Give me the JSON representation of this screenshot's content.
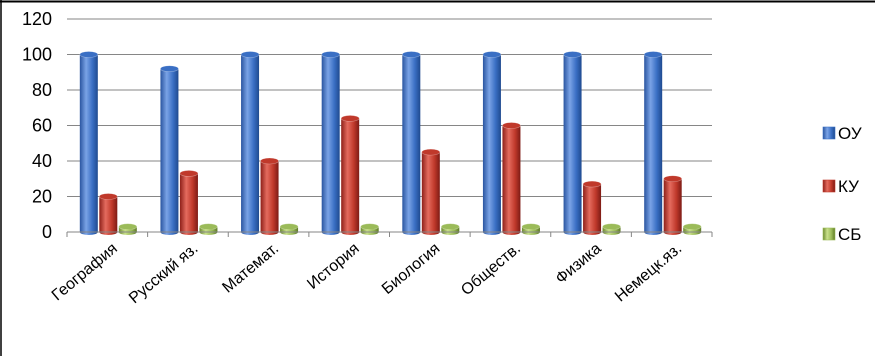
{
  "chart_data": {
    "type": "bar",
    "categories": [
      "География",
      "Русский яз.",
      "Математ.",
      "История",
      "Биология",
      "Обществ.",
      "Физика",
      "Немецк.яз."
    ],
    "series": [
      {
        "name": "ОУ",
        "color": "#3a6fc4",
        "values": [
          100,
          92,
          100,
          100,
          100,
          100,
          100,
          100
        ]
      },
      {
        "name": "КУ",
        "color": "#c0392b",
        "values": [
          20,
          33,
          40,
          64,
          45,
          60,
          27,
          30
        ]
      },
      {
        "name": "СБ",
        "color": "#9bbb59",
        "values": [
          3,
          3,
          3,
          3,
          3,
          3,
          3,
          3
        ]
      }
    ],
    "ylim": [
      0,
      120
    ],
    "yticks": [
      0,
      20,
      40,
      60,
      80,
      100,
      120
    ],
    "grid": true,
    "legend": "right",
    "bar_style": "3d-cylinder"
  }
}
